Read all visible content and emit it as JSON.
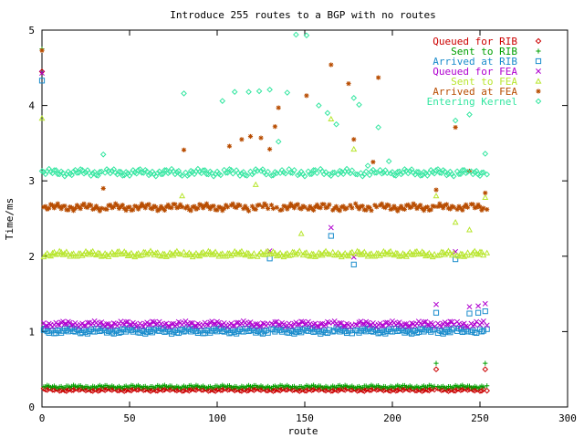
{
  "chart_data": {
    "type": "scatter",
    "title": "Introduce 255 routes to a BGP with no routes",
    "xlabel": "route",
    "ylabel": "Time/ms",
    "xlim": [
      0,
      300
    ],
    "ylim": [
      0,
      5
    ],
    "x_ticks": [
      "0",
      "50",
      "100",
      "150",
      "200",
      "250",
      "300"
    ],
    "y_ticks": [
      "0",
      "1",
      "2",
      "3",
      "4",
      "5"
    ],
    "grid": false,
    "legend_position": "top-right",
    "point_count": 255,
    "series": [
      {
        "name": "Queued for RIB",
        "color": "#cc0000",
        "marker": "diamond",
        "base": 0.23,
        "jitter": 0.02,
        "first": 4.45,
        "specials": [
          [
            225,
            0.5
          ],
          [
            253,
            0.5
          ]
        ]
      },
      {
        "name": "Sent to RIB",
        "color": "#00a000",
        "marker": "plus",
        "base": 0.27,
        "jitter": 0.02,
        "first": 4.75,
        "specials": [
          [
            225,
            0.58
          ],
          [
            253,
            0.58
          ]
        ]
      },
      {
        "name": "Arrived at RIB",
        "color": "#1a8ccc",
        "marker": "square",
        "base": 1.01,
        "jitter": 0.04,
        "first": 4.33,
        "specials": [
          [
            130,
            1.97
          ],
          [
            165,
            2.27
          ],
          [
            178,
            1.89
          ],
          [
            236,
            1.96
          ],
          [
            225,
            1.25
          ],
          [
            244,
            1.24
          ],
          [
            249,
            1.25
          ],
          [
            253,
            1.27
          ]
        ]
      },
      {
        "name": "Queued for FEA",
        "color": "#b000d0",
        "marker": "x",
        "base": 1.1,
        "jitter": 0.04,
        "first": 4.43,
        "specials": [
          [
            130,
            2.07
          ],
          [
            165,
            2.38
          ],
          [
            178,
            1.99
          ],
          [
            236,
            2.06
          ],
          [
            225,
            1.36
          ],
          [
            244,
            1.33
          ],
          [
            249,
            1.34
          ],
          [
            253,
            1.37
          ]
        ]
      },
      {
        "name": "Sent to FEA",
        "color": "#b8e62e",
        "marker": "triangle",
        "base": 2.03,
        "jitter": 0.04,
        "first": 3.83,
        "specials": [
          [
            80,
            2.8
          ],
          [
            122,
            2.95
          ],
          [
            148,
            2.3
          ],
          [
            165,
            3.82
          ],
          [
            178,
            3.42
          ],
          [
            225,
            2.8
          ],
          [
            236,
            2.45
          ],
          [
            244,
            2.35
          ],
          [
            253,
            2.78
          ]
        ]
      },
      {
        "name": "Arrived at FEA",
        "color": "#b84c00",
        "marker": "star",
        "base": 2.65,
        "jitter": 0.05,
        "first": 4.73,
        "specials": [
          [
            35,
            2.9
          ],
          [
            81,
            3.41
          ],
          [
            107,
            3.46
          ],
          [
            114,
            3.55
          ],
          [
            119,
            3.59
          ],
          [
            125,
            3.57
          ],
          [
            130,
            3.42
          ],
          [
            133,
            3.72
          ],
          [
            135,
            3.97
          ],
          [
            151,
            4.13
          ],
          [
            165,
            4.54
          ],
          [
            175,
            4.29
          ],
          [
            178,
            3.55
          ],
          [
            189,
            3.25
          ],
          [
            192,
            4.37
          ],
          [
            225,
            2.88
          ],
          [
            236,
            3.71
          ],
          [
            244,
            3.13
          ],
          [
            253,
            2.84
          ]
        ]
      },
      {
        "name": "Entering Kernel",
        "color": "#33e6a0",
        "marker": "diamond",
        "base": 3.11,
        "jitter": 0.05,
        "first": 3.13,
        "specials": [
          [
            35,
            3.35
          ],
          [
            81,
            4.16
          ],
          [
            103,
            4.06
          ],
          [
            110,
            4.18
          ],
          [
            118,
            4.18
          ],
          [
            124,
            4.19
          ],
          [
            130,
            4.21
          ],
          [
            135,
            3.52
          ],
          [
            140,
            4.17
          ],
          [
            145,
            4.94
          ],
          [
            151,
            4.93
          ],
          [
            158,
            4.0
          ],
          [
            163,
            3.9
          ],
          [
            168,
            3.75
          ],
          [
            178,
            4.1
          ],
          [
            181,
            4.01
          ],
          [
            186,
            3.2
          ],
          [
            192,
            3.71
          ],
          [
            198,
            3.26
          ],
          [
            236,
            3.8
          ],
          [
            244,
            3.88
          ],
          [
            253,
            3.36
          ]
        ]
      }
    ]
  }
}
